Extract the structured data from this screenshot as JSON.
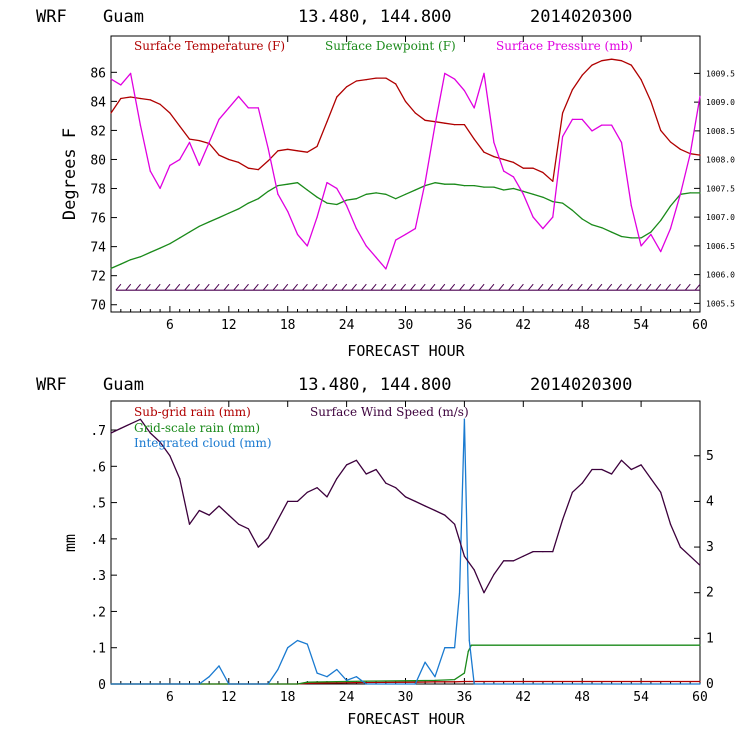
{
  "chart_data": [
    {
      "type": "line",
      "header": {
        "model": "WRF",
        "location": "Guam",
        "coords": "13.480, 144.800",
        "init": "2014020300"
      },
      "xlabel": "FORECAST HOUR",
      "ylabel": "Degrees F",
      "xlim": [
        0,
        60
      ],
      "ylim": [
        69.5,
        88.5
      ],
      "y2lim": [
        1005.35,
        1010.15
      ],
      "xticks": [
        "6",
        "12",
        "18",
        "24",
        "30",
        "36",
        "42",
        "48",
        "54",
        "60"
      ],
      "yticks": [
        "70",
        "72",
        "74",
        "76",
        "78",
        "80",
        "82",
        "84",
        "86"
      ],
      "y2ticks": [
        "1005.5",
        "1006.0",
        "1006.5",
        "1007.0",
        "1007.5",
        "1008.0",
        "1008.5",
        "1009.0",
        "1009.5"
      ],
      "series": [
        {
          "name": "Surface Temperature (F)",
          "color": "#b00000",
          "axis": "left",
          "x": [
            0,
            1,
            2,
            3,
            4,
            5,
            6,
            7,
            8,
            9,
            10,
            11,
            12,
            13,
            14,
            15,
            16,
            17,
            18,
            19,
            20,
            21,
            22,
            23,
            24,
            25,
            26,
            27,
            28,
            29,
            30,
            31,
            32,
            33,
            34,
            35,
            36,
            37,
            38,
            39,
            40,
            41,
            42,
            43,
            44,
            45,
            46,
            47,
            48,
            49,
            50,
            51,
            52,
            53,
            54,
            55,
            56,
            57,
            58,
            59,
            60
          ],
          "values": [
            83.2,
            84.2,
            84.3,
            84.2,
            84.1,
            83.8,
            83.2,
            82.3,
            81.4,
            81.3,
            81.1,
            80.3,
            80.0,
            79.8,
            79.4,
            79.3,
            79.9,
            80.6,
            80.7,
            80.6,
            80.5,
            80.9,
            82.6,
            84.3,
            85.0,
            85.4,
            85.5,
            85.6,
            85.6,
            85.2,
            84.0,
            83.2,
            82.7,
            82.6,
            82.5,
            82.4,
            82.4,
            81.4,
            80.5,
            80.2,
            80.0,
            79.8,
            79.4,
            79.4,
            79.1,
            78.5,
            83.2,
            84.8,
            85.8,
            86.5,
            86.8,
            86.9,
            86.8,
            86.5,
            85.5,
            84.0,
            82.0,
            81.2,
            80.7,
            80.4,
            80.3
          ]
        },
        {
          "name": "Surface Dewpoint (F)",
          "color": "#1a8a1a",
          "axis": "left",
          "x": [
            0,
            1,
            2,
            3,
            4,
            5,
            6,
            7,
            8,
            9,
            10,
            11,
            12,
            13,
            14,
            15,
            16,
            17,
            18,
            19,
            20,
            21,
            22,
            23,
            24,
            25,
            26,
            27,
            28,
            29,
            30,
            31,
            32,
            33,
            34,
            35,
            36,
            37,
            38,
            39,
            40,
            41,
            42,
            43,
            44,
            45,
            46,
            47,
            48,
            49,
            50,
            51,
            52,
            53,
            54,
            55,
            56,
            57,
            58,
            59,
            60
          ],
          "values": [
            72.5,
            72.8,
            73.1,
            73.3,
            73.6,
            73.9,
            74.2,
            74.6,
            75.0,
            75.4,
            75.7,
            76.0,
            76.3,
            76.6,
            77.0,
            77.3,
            77.8,
            78.2,
            78.3,
            78.4,
            77.9,
            77.4,
            77.0,
            76.9,
            77.2,
            77.3,
            77.6,
            77.7,
            77.6,
            77.3,
            77.6,
            77.9,
            78.2,
            78.4,
            78.3,
            78.3,
            78.2,
            78.2,
            78.1,
            78.1,
            77.9,
            78.0,
            77.8,
            77.6,
            77.4,
            77.1,
            77.0,
            76.5,
            75.9,
            75.5,
            75.3,
            75.0,
            74.7,
            74.6,
            74.6,
            75.0,
            75.8,
            76.8,
            77.6,
            77.7,
            77.7
          ]
        },
        {
          "name": "Surface Pressure (mb)",
          "color": "#e000e0",
          "axis": "right",
          "x": [
            0,
            1,
            2,
            3,
            4,
            5,
            6,
            7,
            8,
            9,
            10,
            11,
            12,
            13,
            14,
            15,
            16,
            17,
            18,
            19,
            20,
            21,
            22,
            23,
            24,
            25,
            26,
            27,
            28,
            29,
            30,
            31,
            32,
            33,
            34,
            35,
            36,
            37,
            38,
            39,
            40,
            41,
            42,
            43,
            44,
            45,
            46,
            47,
            48,
            49,
            50,
            51,
            52,
            53,
            54,
            55,
            56,
            57,
            58,
            59,
            60
          ],
          "values": [
            1009.4,
            1009.3,
            1009.5,
            1008.6,
            1007.8,
            1007.5,
            1007.9,
            1008.0,
            1008.3,
            1007.9,
            1008.3,
            1008.7,
            1008.9,
            1009.1,
            1008.9,
            1008.9,
            1008.2,
            1007.4,
            1007.1,
            1006.7,
            1006.5,
            1007.0,
            1007.6,
            1007.5,
            1007.2,
            1006.8,
            1006.5,
            1006.3,
            1006.1,
            1006.6,
            1006.7,
            1006.8,
            1007.6,
            1008.6,
            1009.5,
            1009.4,
            1009.2,
            1008.9,
            1009.5,
            1008.3,
            1007.8,
            1007.7,
            1007.4,
            1007.0,
            1006.8,
            1007.0,
            1008.4,
            1008.7,
            1008.7,
            1008.5,
            1008.6,
            1008.6,
            1008.3,
            1007.2,
            1006.5,
            1006.7,
            1006.4,
            1006.8,
            1007.4,
            1008.1,
            1009.1
          ]
        }
      ],
      "wind_barbs": {
        "color": "#4b0050",
        "y_level": 71.0,
        "x_start": 0.5,
        "x_end": 60,
        "x_step": 1
      }
    },
    {
      "type": "line",
      "header": {
        "model": "WRF",
        "location": "Guam",
        "coords": "13.480, 144.800",
        "init": "2014020300"
      },
      "xlabel": "FORECAST HOUR",
      "ylabel": "mm",
      "xlim": [
        0,
        60
      ],
      "ylim": [
        0,
        0.78
      ],
      "y2lim": [
        0,
        6.2
      ],
      "xticks": [
        "6",
        "12",
        "18",
        "24",
        "30",
        "36",
        "42",
        "48",
        "54",
        "60"
      ],
      "yticks": [
        "0",
        ".1",
        ".2",
        ".3",
        ".4",
        ".5",
        ".6",
        ".7"
      ],
      "y2ticks": [
        "0",
        "1",
        "2",
        "3",
        "4",
        "5"
      ],
      "series": [
        {
          "name": "Sub-grid rain (mm)",
          "color": "#b00000",
          "axis": "left",
          "x": [
            0,
            19,
            20,
            26,
            31,
            33,
            35,
            36,
            36.5,
            60
          ],
          "values": [
            0,
            0,
            0.002,
            0.004,
            0.005,
            0.006,
            0.006,
            0.007,
            0.007,
            0.007
          ]
        },
        {
          "name": "Grid-scale rain (mm)",
          "color": "#1a8a1a",
          "axis": "left",
          "x": [
            0,
            19,
            20,
            26,
            31,
            33,
            35,
            36,
            36.4,
            36.7,
            60
          ],
          "values": [
            0,
            0,
            0.005,
            0.008,
            0.009,
            0.01,
            0.012,
            0.03,
            0.09,
            0.107,
            0.107
          ]
        },
        {
          "name": "Integrated cloud (mm)",
          "color": "#1a7ad0",
          "axis": "left",
          "x": [
            0,
            9,
            10,
            11,
            12,
            16,
            17,
            18,
            19,
            20,
            21,
            22,
            23,
            24,
            25,
            26,
            31,
            32,
            33,
            34,
            35,
            35.5,
            36,
            36.5,
            37,
            38,
            60
          ],
          "values": [
            0,
            0,
            0.02,
            0.05,
            0,
            0,
            0.04,
            0.1,
            0.12,
            0.11,
            0.03,
            0.02,
            0.04,
            0.01,
            0.02,
            0,
            0,
            0.06,
            0.02,
            0.1,
            0.1,
            0.25,
            0.73,
            0.12,
            0,
            0,
            0
          ]
        },
        {
          "name": "Surface Wind Speed (m/s)",
          "color": "#3c003c",
          "axis": "right",
          "x": [
            0,
            1,
            2,
            3,
            4,
            5,
            6,
            7,
            8,
            9,
            10,
            11,
            12,
            13,
            14,
            15,
            16,
            17,
            18,
            19,
            20,
            21,
            22,
            23,
            24,
            25,
            26,
            27,
            28,
            29,
            30,
            31,
            32,
            33,
            34,
            35,
            36,
            37,
            38,
            39,
            40,
            41,
            42,
            43,
            44,
            45,
            46,
            47,
            48,
            49,
            50,
            51,
            52,
            53,
            54,
            55,
            56,
            57,
            58,
            59,
            60
          ],
          "values": [
            5.5,
            5.6,
            5.7,
            5.8,
            5.5,
            5.3,
            5.0,
            4.5,
            3.5,
            3.8,
            3.7,
            3.9,
            3.7,
            3.5,
            3.4,
            3.0,
            3.2,
            3.6,
            4.0,
            4.0,
            4.2,
            4.3,
            4.1,
            4.5,
            4.8,
            4.9,
            4.6,
            4.7,
            4.4,
            4.3,
            4.1,
            4.0,
            3.9,
            3.8,
            3.7,
            3.5,
            2.8,
            2.5,
            2.0,
            2.4,
            2.7,
            2.7,
            2.8,
            2.9,
            2.9,
            2.9,
            3.6,
            4.2,
            4.4,
            4.7,
            4.7,
            4.6,
            4.9,
            4.7,
            4.8,
            4.5,
            4.2,
            3.5,
            3.0,
            2.8,
            2.6
          ]
        }
      ]
    }
  ]
}
